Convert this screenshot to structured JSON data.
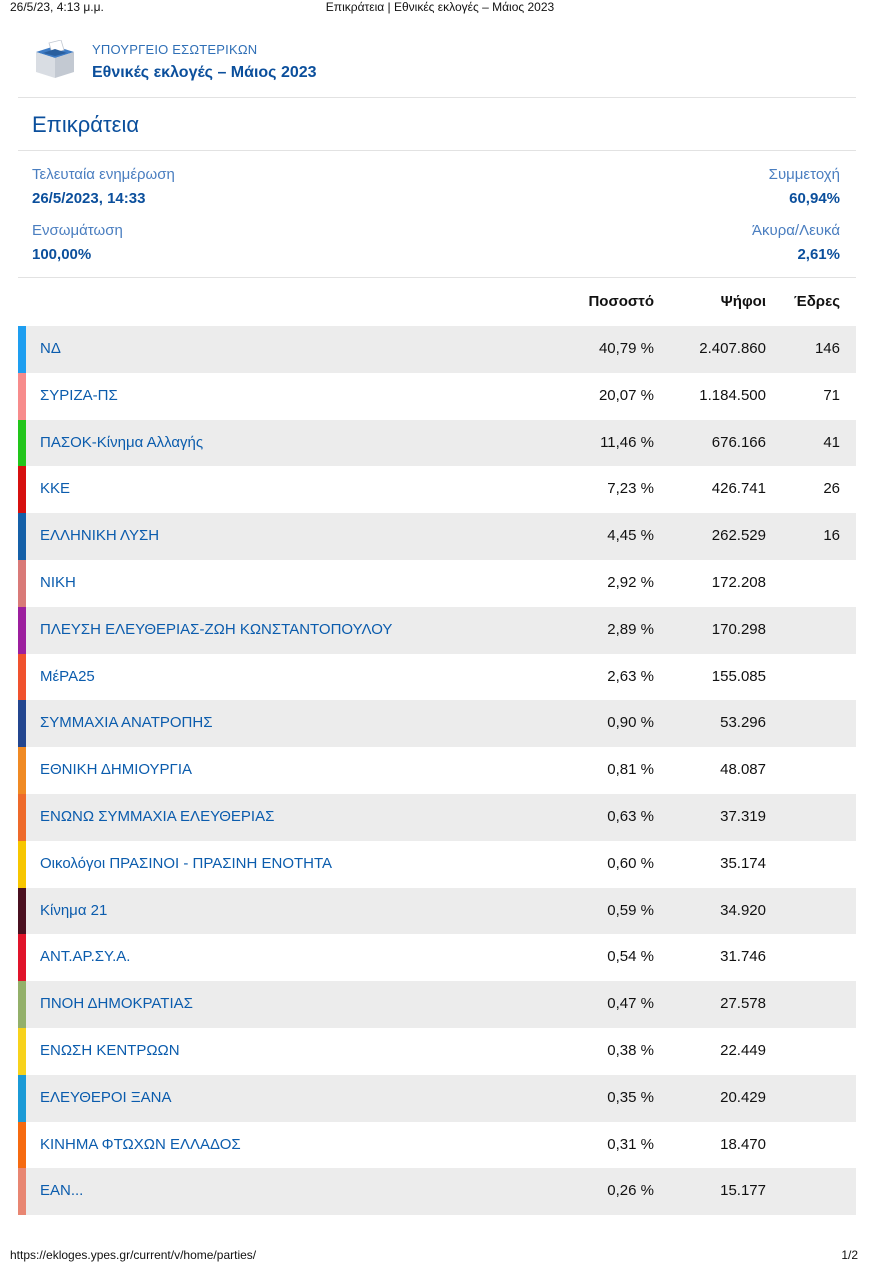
{
  "print": {
    "datetime": "26/5/23, 4:13 μ.μ.",
    "title": "Επικράτεια | Εθνικές εκλογές – Μάιος 2023",
    "url": "https://ekloges.ypes.gr/current/v/home/parties/",
    "page": "1/2"
  },
  "header": {
    "logo_icon": "ballot-box-icon",
    "ministry": "ΥΠΟΥΡΓΕΙΟ ΕΣΩΤΕΡΙΚΩΝ",
    "election": "Εθνικές εκλογές – Μάιος 2023"
  },
  "page_title": "Επικράτεια",
  "stats": {
    "last_update_label": "Τελευταία ενημέρωση",
    "last_update_value": "26/5/2023, 14:33",
    "participation_label": "Συμμετοχή",
    "participation_value": "60,94%",
    "integration_label": "Ενσωμάτωση",
    "integration_value": "100,00%",
    "invalid_label": "Άκυρα/Λευκά",
    "invalid_value": "2,61%"
  },
  "table": {
    "headers": {
      "percent": "Ποσοστό",
      "votes": "Ψήφοι",
      "seats": "Έδρες"
    },
    "rows": [
      {
        "name": "ΝΔ",
        "percent": "40,79 %",
        "votes": "2.407.860",
        "seats": "146",
        "color": "#1e9ef0"
      },
      {
        "name": "ΣΥΡΙΖΑ-ΠΣ",
        "percent": "20,07 %",
        "votes": "1.184.500",
        "seats": "71",
        "color": "#f78c8c"
      },
      {
        "name": "ΠΑΣΟΚ-Κίνημα Αλλαγής",
        "percent": "11,46 %",
        "votes": "676.166",
        "seats": "41",
        "color": "#22c51b"
      },
      {
        "name": "ΚΚΕ",
        "percent": "7,23 %",
        "votes": "426.741",
        "seats": "26",
        "color": "#d6100f"
      },
      {
        "name": "ΕΛΛΗΝΙΚΗ ΛΥΣΗ",
        "percent": "4,45 %",
        "votes": "262.529",
        "seats": "16",
        "color": "#1560a8"
      },
      {
        "name": "ΝΙΚΗ",
        "percent": "2,92 %",
        "votes": "172.208",
        "seats": "",
        "color": "#d97a78"
      },
      {
        "name": "ΠΛΕΥΣΗ ΕΛΕΥΘΕΡΙΑΣ-ΖΩΗ ΚΩΝΣΤΑΝΤΟΠΟΥΛΟΥ",
        "percent": "2,89 %",
        "votes": "170.298",
        "seats": "",
        "color": "#9c1f9e"
      },
      {
        "name": "ΜέΡΑ25",
        "percent": "2,63 %",
        "votes": "155.085",
        "seats": "",
        "color": "#f0522e"
      },
      {
        "name": "ΣΥΜΜΑΧΙΑ ΑΝΑΤΡΟΠΗΣ",
        "percent": "0,90 %",
        "votes": "53.296",
        "seats": "",
        "color": "#23468f"
      },
      {
        "name": "ΕΘΝΙΚΗ ΔΗΜΙΟΥΡΓΙΑ",
        "percent": "0,81 %",
        "votes": "48.087",
        "seats": "",
        "color": "#f08a24"
      },
      {
        "name": "ΕΝΩΝΩ ΣΥΜΜΑΧΙΑ ΕΛΕΥΘΕΡΙΑΣ",
        "percent": "0,63 %",
        "votes": "37.319",
        "seats": "",
        "color": "#ee6a2a"
      },
      {
        "name": "Οικολόγοι ΠΡΑΣΙΝΟΙ - ΠΡΑΣΙΝΗ ΕΝΟΤΗΤΑ",
        "percent": "0,60 %",
        "votes": "35.174",
        "seats": "",
        "color": "#f7c600"
      },
      {
        "name": "Κίνημα 21",
        "percent": "0,59 %",
        "votes": "34.920",
        "seats": "",
        "color": "#4a1020"
      },
      {
        "name": "ΑΝΤ.ΑΡ.ΣΥ.Α.",
        "percent": "0,54 %",
        "votes": "31.746",
        "seats": "",
        "color": "#e0142a"
      },
      {
        "name": "ΠΝΟΗ ΔΗΜΟΚΡΑΤΙΑΣ",
        "percent": "0,47 %",
        "votes": "27.578",
        "seats": "",
        "color": "#93b06a"
      },
      {
        "name": "ΕΝΩΣΗ ΚΕΝΤΡΩΩΝ",
        "percent": "0,38 %",
        "votes": "22.449",
        "seats": "",
        "color": "#f7d21c"
      },
      {
        "name": "ΕΛΕΥΘΕΡΟΙ ΞΑΝΑ",
        "percent": "0,35 %",
        "votes": "20.429",
        "seats": "",
        "color": "#1b9ad6"
      },
      {
        "name": "ΚΙΝΗΜΑ ΦΤΩΧΩΝ ΕΛΛΑΔΟΣ",
        "percent": "0,31 %",
        "votes": "18.470",
        "seats": "",
        "color": "#f66a10"
      },
      {
        "name": "ΕΑΝ...",
        "percent": "0,26 %",
        "votes": "15.177",
        "seats": "",
        "color": "#e88672"
      }
    ]
  }
}
